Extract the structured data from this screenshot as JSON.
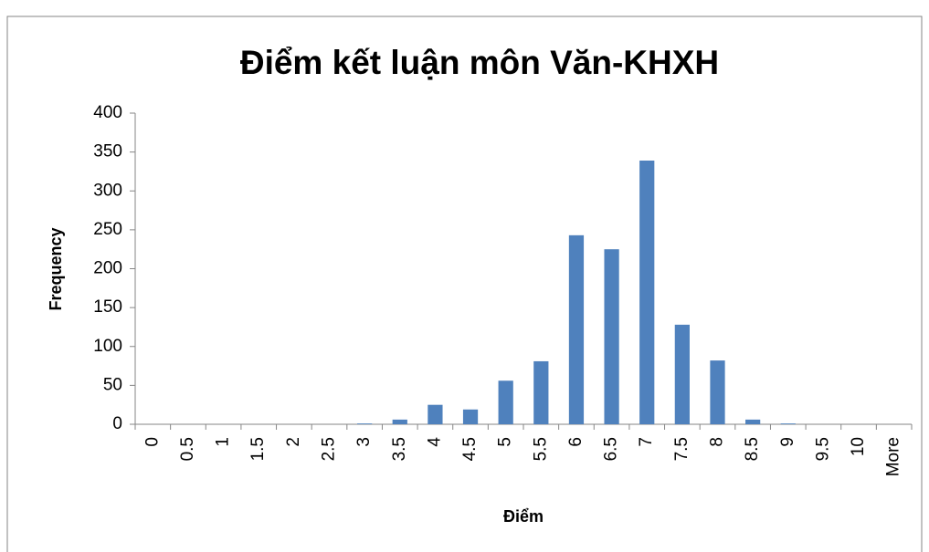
{
  "chart_data": {
    "type": "bar",
    "title": "Điểm kết luận môn Văn-KHXH",
    "x_label": "Điểm",
    "y_label": "Frequency",
    "categories": [
      "0",
      "0.5",
      "1",
      "1.5",
      "2",
      "2.5",
      "3",
      "3.5",
      "4",
      "4.5",
      "5",
      "5.5",
      "6",
      "6.5",
      "7",
      "7.5",
      "8",
      "8.5",
      "9",
      "9.5",
      "10",
      "More"
    ],
    "values": [
      0,
      0,
      0,
      0,
      0,
      0,
      1,
      6,
      25,
      19,
      56,
      81,
      243,
      225,
      339,
      128,
      82,
      6,
      1,
      0,
      0,
      0
    ],
    "color": "#4f81bd",
    "ylim": [
      0,
      400
    ],
    "yticks": [
      0,
      50,
      100,
      150,
      200,
      250,
      300,
      350,
      400
    ],
    "grid": false
  }
}
